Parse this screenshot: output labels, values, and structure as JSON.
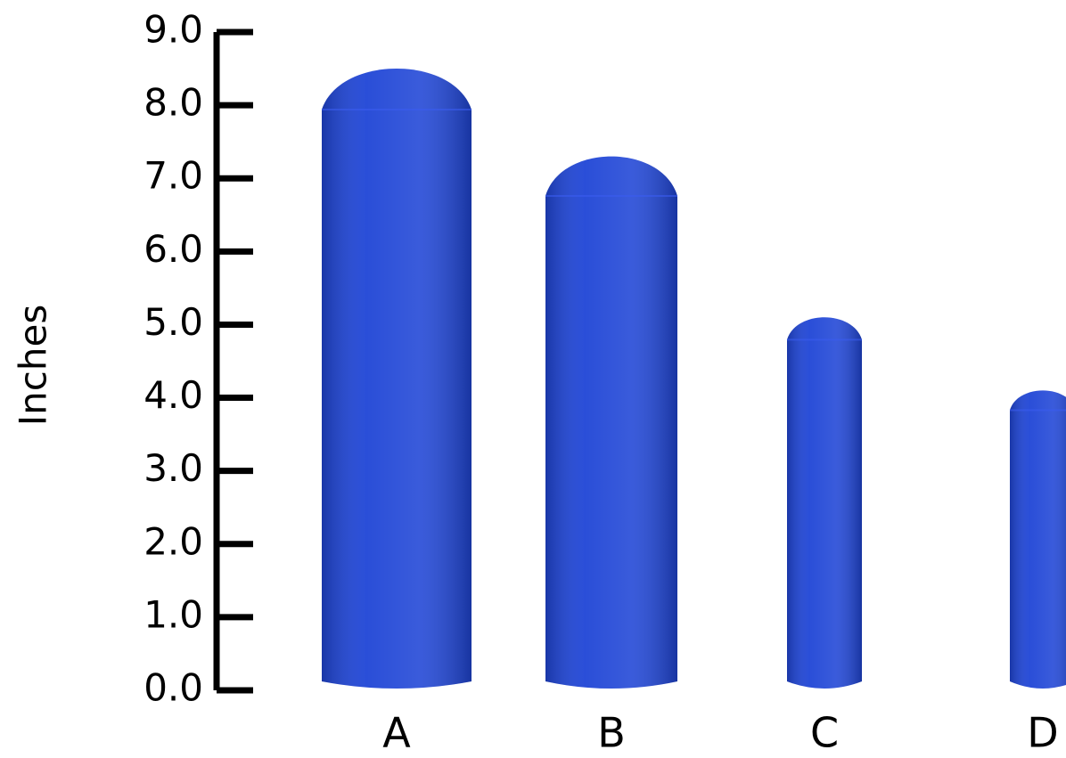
{
  "chart_data": {
    "type": "bar",
    "y_label": "Inches",
    "categories": [
      "A",
      "B",
      "C",
      "D"
    ],
    "values": [
      8.5,
      7.3,
      5.1,
      4.1
    ],
    "color": "#1f45d6",
    "ylim": [
      0,
      9
    ],
    "yticks": [
      {
        "value": 0,
        "label": "0.0"
      },
      {
        "value": 1,
        "label": "1.0"
      },
      {
        "value": 2,
        "label": "2.0"
      },
      {
        "value": 3,
        "label": "3.0"
      },
      {
        "value": 4,
        "label": "4.0"
      },
      {
        "value": 5,
        "label": "5.0"
      },
      {
        "value": 6,
        "label": "6.0"
      },
      {
        "value": 7,
        "label": "7.0"
      },
      {
        "value": 8,
        "label": "8.0"
      },
      {
        "value": 9,
        "label": "9.0"
      }
    ]
  }
}
